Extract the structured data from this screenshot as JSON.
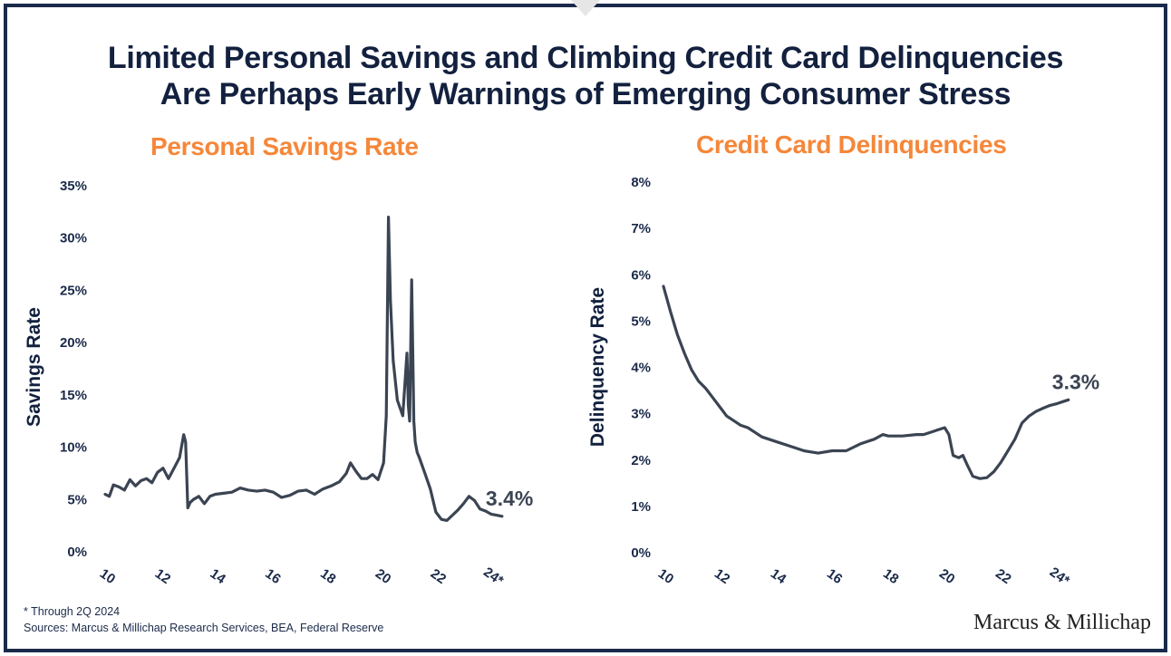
{
  "title_line1": "Limited Personal Savings and Climbing Credit Card Delinquencies",
  "title_line2": "Are Perhaps Early Warnings of Emerging Consumer Stress",
  "footnote": "* Through 2Q 2024",
  "sources": "Sources: Marcus & Millichap Research Services, BEA, Federal Reserve",
  "logo_text": "Marcus & Millichap",
  "colors": {
    "title": "#13213f",
    "chart_title": "#f5873a",
    "line": "#3b4452",
    "frame": "#1b2a4a"
  },
  "chart_data": [
    {
      "type": "line",
      "title": "Personal Savings Rate",
      "ylabel": "Savings Rate",
      "xlabel": "",
      "x_tick_labels": [
        "10",
        "12",
        "14",
        "16",
        "18",
        "20",
        "22",
        "24*"
      ],
      "y_tick_labels": [
        "0%",
        "5%",
        "10%",
        "15%",
        "20%",
        "25%",
        "30%",
        "35%"
      ],
      "ylim": [
        0,
        35
      ],
      "xlim": [
        2010,
        2024.6
      ],
      "end_label": "3.4%",
      "series": [
        {
          "x": [
            2010.0,
            2010.15,
            2010.3,
            2010.5,
            2010.7,
            2010.9,
            2011.1,
            2011.3,
            2011.5,
            2011.7,
            2011.9,
            2012.1,
            2012.3,
            2012.5,
            2012.7,
            2012.85,
            2012.92,
            2013.0,
            2013.08,
            2013.2,
            2013.4,
            2013.6,
            2013.8,
            2014.0,
            2014.3,
            2014.6,
            2014.9,
            2015.2,
            2015.5,
            2015.8,
            2016.1,
            2016.4,
            2016.7,
            2017.0,
            2017.3,
            2017.6,
            2017.9,
            2018.2,
            2018.5,
            2018.75,
            2018.9,
            2019.1,
            2019.3,
            2019.5,
            2019.7,
            2019.9,
            2020.1,
            2020.2,
            2020.28,
            2020.35,
            2020.45,
            2020.6,
            2020.8,
            2020.95,
            2021.0,
            2021.05,
            2021.12,
            2021.2,
            2021.25,
            2021.32,
            2021.4,
            2021.6,
            2021.8,
            2022.0,
            2022.2,
            2022.4,
            2022.6,
            2022.8,
            2023.0,
            2023.2,
            2023.4,
            2023.6,
            2023.8,
            2024.0,
            2024.2,
            2024.4
          ],
          "y": [
            5.5,
            5.3,
            6.4,
            6.2,
            5.9,
            6.9,
            6.3,
            6.8,
            7.0,
            6.6,
            7.6,
            8.0,
            7.0,
            8.0,
            9.0,
            11.2,
            10.5,
            4.2,
            4.7,
            5.0,
            5.3,
            4.6,
            5.3,
            5.5,
            5.6,
            5.7,
            6.1,
            5.9,
            5.8,
            5.9,
            5.7,
            5.2,
            5.4,
            5.8,
            5.9,
            5.5,
            6.0,
            6.3,
            6.7,
            7.5,
            8.5,
            7.7,
            7.0,
            7.0,
            7.4,
            6.9,
            8.5,
            13.0,
            32.0,
            24.0,
            18.3,
            14.5,
            13.0,
            19.0,
            14.0,
            12.5,
            26.0,
            12.5,
            10.5,
            9.5,
            9.0,
            7.5,
            6.0,
            3.8,
            3.1,
            3.0,
            3.5,
            4.0,
            4.6,
            5.3,
            4.9,
            4.1,
            3.9,
            3.6,
            3.5,
            3.4
          ]
        }
      ]
    },
    {
      "type": "line",
      "title": "Credit Card Delinquencies",
      "ylabel": "Delinquency Rate",
      "xlabel": "",
      "x_tick_labels": [
        "10",
        "12",
        "14",
        "16",
        "18",
        "20",
        "22",
        "24*"
      ],
      "y_tick_labels": [
        "0%",
        "1%",
        "2%",
        "3%",
        "4%",
        "5%",
        "6%",
        "7%",
        "8%"
      ],
      "ylim": [
        0,
        8
      ],
      "xlim": [
        2010,
        2024.6
      ],
      "end_label": "3.3%",
      "series": [
        {
          "x": [
            2010.0,
            2010.25,
            2010.5,
            2010.75,
            2011.0,
            2011.25,
            2011.5,
            2011.75,
            2012.0,
            2012.25,
            2012.5,
            2012.75,
            2013.0,
            2013.25,
            2013.5,
            2014.0,
            2014.5,
            2015.0,
            2015.5,
            2016.0,
            2016.5,
            2017.0,
            2017.5,
            2017.8,
            2018.0,
            2018.5,
            2019.0,
            2019.25,
            2019.5,
            2019.75,
            2020.0,
            2020.15,
            2020.3,
            2020.5,
            2020.65,
            2020.8,
            2021.0,
            2021.25,
            2021.5,
            2021.75,
            2022.0,
            2022.25,
            2022.5,
            2022.75,
            2023.0,
            2023.25,
            2023.5,
            2023.75,
            2024.0,
            2024.25,
            2024.4
          ],
          "y": [
            5.75,
            5.2,
            4.7,
            4.3,
            3.95,
            3.7,
            3.55,
            3.35,
            3.15,
            2.95,
            2.85,
            2.75,
            2.7,
            2.6,
            2.5,
            2.4,
            2.3,
            2.2,
            2.15,
            2.2,
            2.2,
            2.35,
            2.45,
            2.55,
            2.52,
            2.52,
            2.55,
            2.55,
            2.6,
            2.65,
            2.7,
            2.55,
            2.1,
            2.05,
            2.1,
            1.9,
            1.65,
            1.6,
            1.62,
            1.75,
            1.95,
            2.2,
            2.45,
            2.8,
            2.95,
            3.05,
            3.12,
            3.18,
            3.22,
            3.27,
            3.3
          ]
        }
      ]
    }
  ]
}
